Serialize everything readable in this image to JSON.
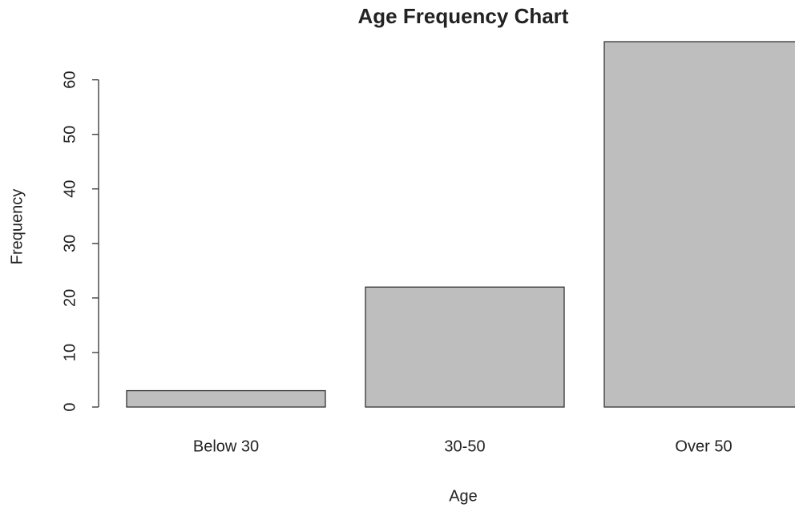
{
  "chart_data": {
    "type": "bar",
    "title": "Age Frequency Chart",
    "x_label": "Age",
    "y_label": "Frequency",
    "categories": [
      "Below 30",
      "30-50",
      "Over 50"
    ],
    "values": [
      3,
      22,
      67
    ],
    "color": "#bebebe",
    "ylim": [
      0,
      67
    ],
    "yticks": [
      0,
      10,
      20,
      30,
      40,
      50,
      60
    ]
  }
}
